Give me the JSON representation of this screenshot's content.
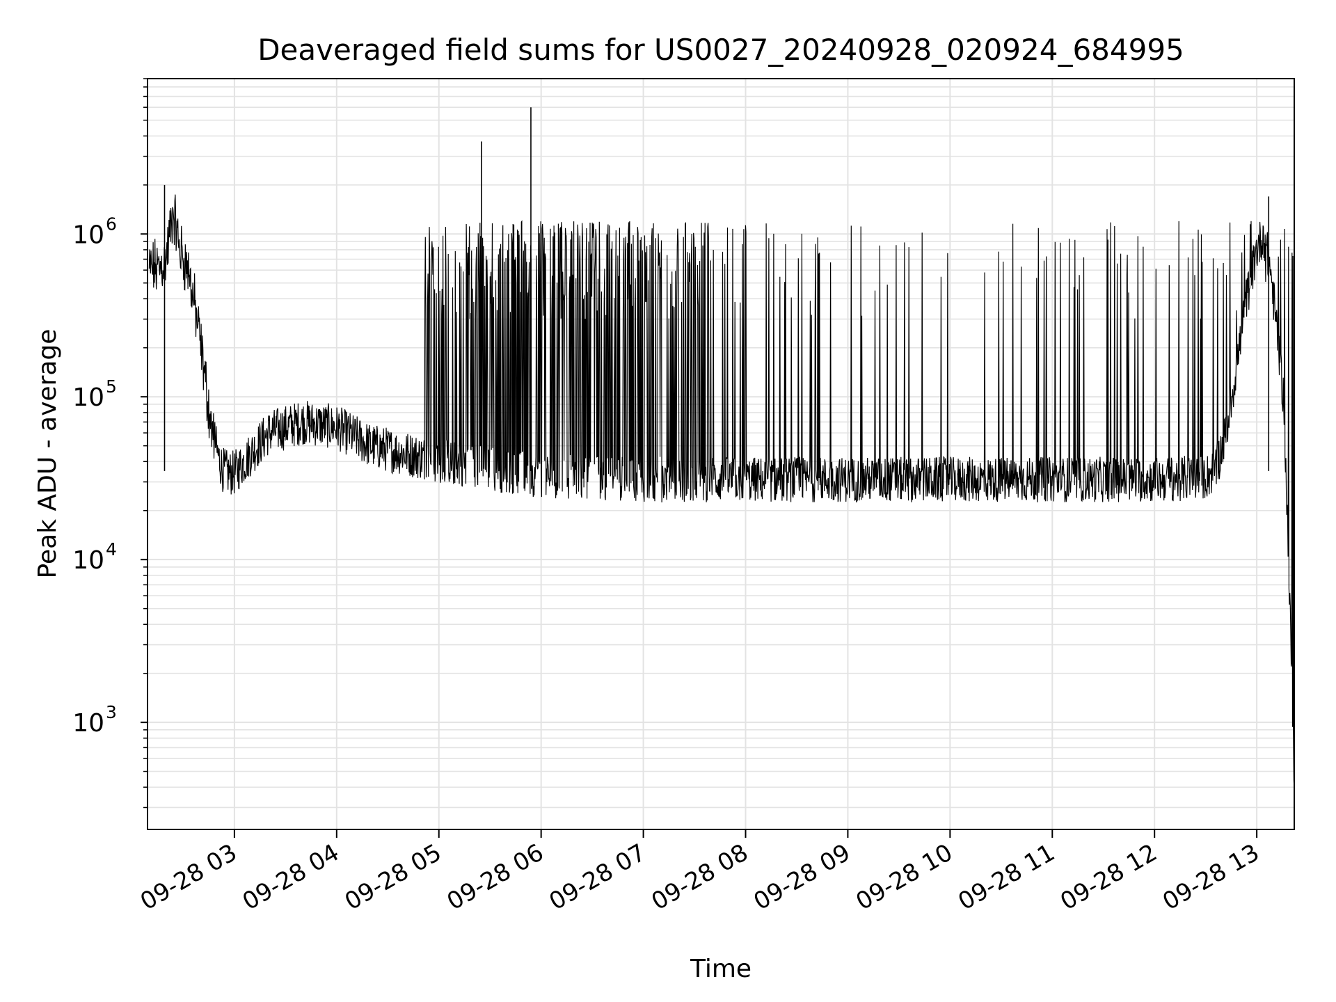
{
  "chart_data": {
    "type": "line",
    "title": "Deaveraged field sums for US0027_20240928_020924_684995",
    "xlabel": "Time",
    "ylabel": "Peak ADU - average",
    "x_range": [
      "2024-09-28 02:09",
      "2024-09-28 13:22"
    ],
    "y_range": [
      220,
      9000000
    ],
    "y_scale": "log",
    "grid": true,
    "legend": "none",
    "x_ticks": [
      "09-28 03",
      "09-28 04",
      "09-28 05",
      "09-28 06",
      "09-28 07",
      "09-28 08",
      "09-28 09",
      "09-28 10",
      "09-28 11",
      "09-28 12",
      "09-28 13"
    ],
    "y_ticks": [
      {
        "base": "10",
        "exp": "3",
        "value": 1000
      },
      {
        "base": "10",
        "exp": "4",
        "value": 10000
      },
      {
        "base": "10",
        "exp": "5",
        "value": 100000
      },
      {
        "base": "10",
        "exp": "6",
        "value": 1000000
      }
    ],
    "series": [
      {
        "values_note_free": true,
        "x": [
          "2024-09-28 02:10",
          "2024-09-28 02:16",
          "2024-09-28 02:20",
          "2024-09-28 02:24",
          "2024-09-28 02:28",
          "2024-09-28 02:33",
          "2024-09-28 02:38",
          "2024-09-28 02:42",
          "2024-09-28 02:46",
          "2024-09-28 02:50",
          "2024-09-28 02:53",
          "2024-09-28 02:56",
          "2024-09-28 03:00",
          "2024-09-28 03:20",
          "2024-09-28 03:40",
          "2024-09-28 04:00",
          "2024-09-28 04:20",
          "2024-09-28 04:40",
          "2024-09-28 05:00",
          "2024-09-28 05:20",
          "2024-09-28 05:40",
          "2024-09-28 06:00",
          "2024-09-28 06:30",
          "2024-09-28 07:00",
          "2024-09-28 07:30",
          "2024-09-28 08:00",
          "2024-09-28 08:30",
          "2024-09-28 09:00",
          "2024-09-28 09:30",
          "2024-09-28 10:00",
          "2024-09-28 10:30",
          "2024-09-28 11:00",
          "2024-09-28 11:30",
          "2024-09-28 12:00",
          "2024-09-28 12:30",
          "2024-09-28 12:36",
          "2024-09-28 12:42",
          "2024-09-28 12:48",
          "2024-09-28 12:54",
          "2024-09-28 13:00",
          "2024-09-28 13:04",
          "2024-09-28 13:08",
          "2024-09-28 13:12",
          "2024-09-28 13:16",
          "2024-09-28 13:20",
          "2024-09-28 13:22"
        ],
        "values": [
          600000,
          620000,
          700000,
          1400000,
          800000,
          600000,
          300000,
          150000,
          70000,
          45000,
          36000,
          34000,
          34000,
          60000,
          70000,
          65000,
          50000,
          45000,
          40000,
          38000,
          35000,
          33000,
          32000,
          31000,
          31000,
          31000,
          31000,
          31000,
          31000,
          31000,
          31000,
          31000,
          31000,
          31000,
          32000,
          36000,
          60000,
          150000,
          400000,
          800000,
          1000000,
          600000,
          250000,
          90000,
          3000,
          400
        ]
      }
    ],
    "spikes": [
      {
        "x": "2024-09-28 05:25",
        "value": 3700000
      },
      {
        "x": "2024-09-28 05:54",
        "value": 6000000
      },
      {
        "x": "2024-09-28 02:19",
        "value": 2000000
      },
      {
        "x": "2024-09-28 13:07",
        "value": 1700000
      }
    ]
  }
}
